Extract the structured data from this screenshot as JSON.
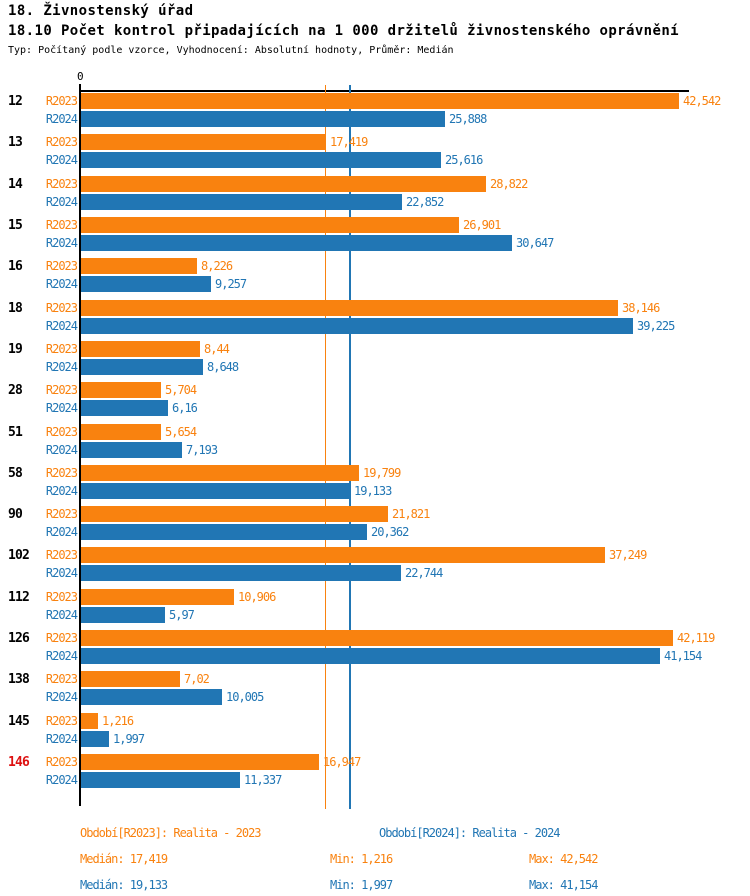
{
  "header": {
    "title": "18. Živnostenský úřad",
    "subtitle": "18.10 Počet kontrol připadajících na 1 000 držitelů živnostenského oprávnění",
    "meta": "Typ: Počítaný podle vzorce, Vyhodnocení: Absolutní hodnoty, Průměr: Medián"
  },
  "colors": {
    "series_2023": "#f9820f",
    "series_2024": "#2176b4",
    "highlight_category": "#dd1111",
    "axis": "#000000"
  },
  "chart_data": {
    "type": "bar",
    "orientation": "horizontal",
    "title": "18.10 Počet kontrol připadajících na 1 000 držitelů živnostenského oprávnění",
    "x_axis": {
      "zero_label": "0",
      "min": 0,
      "max_shown": 42.542,
      "grid": "off"
    },
    "categories": [
      "12",
      "13",
      "14",
      "15",
      "16",
      "18",
      "19",
      "28",
      "51",
      "58",
      "90",
      "102",
      "112",
      "126",
      "138",
      "145",
      "146"
    ],
    "highlighted_category": "146",
    "series": [
      {
        "name": "R2023",
        "legend": "Období[R2023]: Realita - 2023",
        "color": "#f9820f",
        "median": 17.419,
        "values": [
          42.542,
          17.419,
          28.822,
          26.901,
          8.226,
          38.146,
          8.44,
          5.704,
          5.654,
          19.799,
          21.821,
          37.249,
          10.906,
          42.119,
          7.02,
          1.216,
          16.947
        ],
        "value_labels": [
          "42,542",
          "17,419",
          "28,822",
          "26,901",
          "8,226",
          "38,146",
          "8,44",
          "5,704",
          "5,654",
          "19,799",
          "21,821",
          "37,249",
          "10,906",
          "42,119",
          "7,02",
          "1,216",
          "16,947"
        ]
      },
      {
        "name": "R2024",
        "legend": "Období[R2024]: Realita - 2024",
        "color": "#2176b4",
        "median": 19.133,
        "values": [
          25.888,
          25.616,
          22.852,
          30.647,
          9.257,
          39.225,
          8.648,
          6.16,
          7.193,
          19.133,
          20.362,
          22.744,
          5.97,
          41.154,
          10.005,
          1.997,
          11.337
        ],
        "value_labels": [
          "25,888",
          "25,616",
          "22,852",
          "30,647",
          "9,257",
          "39,225",
          "8,648",
          "6,16",
          "7,193",
          "19,133",
          "20,362",
          "22,744",
          "5,97",
          "41,154",
          "10,005",
          "1,997",
          "11,337"
        ]
      }
    ]
  },
  "legend": {
    "series": [
      {
        "label": "Období[R2023]: Realita - 2023",
        "median": "Medián: 17,419",
        "min": "Min: 1,216",
        "max": "Max: 42,542"
      },
      {
        "label": "Období[R2024]: Realita - 2024",
        "median": "Medián: 19,133",
        "min": "Min: 1,997",
        "max": "Max: 41,154"
      }
    ]
  }
}
